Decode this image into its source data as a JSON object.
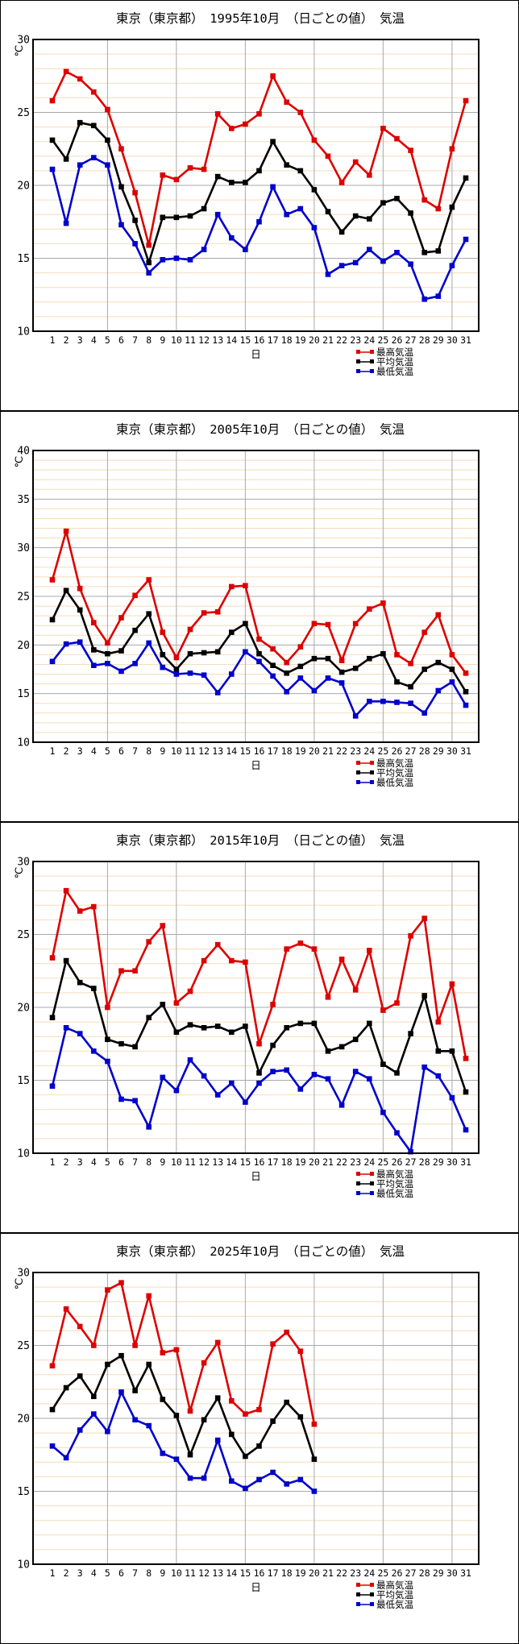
{
  "colors": {
    "max_line": "#dd0000",
    "avg_line": "#000000",
    "min_line": "#0000cc",
    "grid_minor": "#f2ddbb",
    "grid_major": "#a9a9a9",
    "plot_border": "#000000",
    "background": "#ffffff"
  },
  "legend": {
    "entries": [
      {
        "label": "最高気温",
        "color": "#dd0000"
      },
      {
        "label": "平均気温",
        "color": "#000000"
      },
      {
        "label": "最低気温",
        "color": "#0000cc"
      }
    ]
  },
  "axis": {
    "unit_label": "℃",
    "x_label": "日"
  },
  "chart_data": [
    {
      "type": "line",
      "title": "東京（東京都）　1995年10月　（日ごとの値）　気温",
      "station": "東京（東京都）",
      "period": "1995年10月",
      "subtitle": "（日ごとの値）",
      "quantity": "気温",
      "xlabel": "日",
      "ylabel": "℃",
      "ylim": [
        10,
        30
      ],
      "yticks": [
        10,
        15,
        20,
        25,
        30
      ],
      "xticks": [
        1,
        2,
        3,
        4,
        5,
        6,
        7,
        8,
        9,
        10,
        11,
        12,
        13,
        14,
        15,
        16,
        17,
        18,
        19,
        20,
        21,
        22,
        23,
        24,
        25,
        26,
        27,
        28,
        29,
        30,
        31
      ],
      "grid": "minor 1C horizontal, major 5C and every 5 days",
      "legend_position": "below-right",
      "series": [
        {
          "name": "最高気温",
          "color": "#dd0000",
          "values": [
            25.8,
            27.8,
            27.3,
            26.4,
            25.2,
            22.5,
            19.5,
            15.9,
            20.7,
            20.4,
            21.2,
            21.1,
            24.9,
            23.9,
            24.2,
            24.9,
            27.5,
            25.7,
            25.0,
            23.1,
            22.0,
            20.2,
            21.6,
            20.7,
            23.9,
            23.2,
            22.4,
            19.0,
            18.4,
            22.5,
            25.8
          ]
        },
        {
          "name": "平均気温",
          "color": "#000000",
          "values": [
            23.1,
            21.8,
            24.3,
            24.1,
            23.1,
            19.9,
            17.6,
            14.7,
            17.8,
            17.8,
            17.9,
            18.4,
            20.6,
            20.2,
            20.2,
            21.0,
            23.0,
            21.4,
            21.0,
            19.7,
            18.2,
            16.8,
            17.9,
            17.7,
            18.8,
            19.1,
            18.1,
            15.4,
            15.5,
            18.5,
            20.5
          ]
        },
        {
          "name": "最低気温",
          "color": "#0000cc",
          "values": [
            21.1,
            17.4,
            21.4,
            21.9,
            21.4,
            17.3,
            16.0,
            14.0,
            14.9,
            15.0,
            14.9,
            15.6,
            18.0,
            16.4,
            15.6,
            17.5,
            19.9,
            18.0,
            18.4,
            17.1,
            13.9,
            14.5,
            14.7,
            15.6,
            14.8,
            15.4,
            14.6,
            12.2,
            12.4,
            14.5,
            16.3
          ]
        }
      ]
    },
    {
      "type": "line",
      "title": "東京（東京都）　2005年10月　（日ごとの値）　気温",
      "station": "東京（東京都）",
      "period": "2005年10月",
      "subtitle": "（日ごとの値）",
      "quantity": "気温",
      "xlabel": "日",
      "ylabel": "℃",
      "ylim": [
        10,
        40
      ],
      "yticks": [
        10,
        15,
        20,
        25,
        30,
        35,
        40
      ],
      "xticks": [
        1,
        2,
        3,
        4,
        5,
        6,
        7,
        8,
        9,
        10,
        11,
        12,
        13,
        14,
        15,
        16,
        17,
        18,
        19,
        20,
        21,
        22,
        23,
        24,
        25,
        26,
        27,
        28,
        29,
        30,
        31
      ],
      "grid": "minor 1C horizontal, major 5C and every 5 days",
      "legend_position": "below-right",
      "series": [
        {
          "name": "最高気温",
          "color": "#dd0000",
          "values": [
            26.7,
            31.7,
            25.8,
            22.3,
            20.2,
            22.8,
            25.1,
            26.7,
            21.3,
            18.7,
            21.6,
            23.3,
            23.4,
            26.0,
            26.1,
            20.6,
            19.6,
            18.2,
            19.8,
            22.2,
            22.1,
            18.4,
            22.2,
            23.7,
            24.3,
            19.0,
            18.1,
            21.3,
            23.1,
            19.0,
            17.1
          ]
        },
        {
          "name": "平均気温",
          "color": "#000000",
          "values": [
            22.6,
            25.6,
            23.6,
            19.5,
            19.1,
            19.4,
            21.5,
            23.2,
            19.0,
            17.5,
            19.1,
            19.2,
            19.3,
            21.3,
            22.2,
            19.1,
            17.9,
            17.1,
            17.8,
            18.6,
            18.6,
            17.2,
            17.6,
            18.6,
            19.1,
            16.2,
            15.7,
            17.5,
            18.2,
            17.5,
            15.2
          ]
        },
        {
          "name": "最低気温",
          "color": "#0000cc",
          "values": [
            18.3,
            20.1,
            20.3,
            17.9,
            18.1,
            17.3,
            18.1,
            20.2,
            17.7,
            17.0,
            17.1,
            16.9,
            15.1,
            17.0,
            19.3,
            18.3,
            16.8,
            15.2,
            16.6,
            15.3,
            16.6,
            16.1,
            12.7,
            14.2,
            14.2,
            14.1,
            14.0,
            13.0,
            15.3,
            16.2,
            13.8
          ]
        }
      ]
    },
    {
      "type": "line",
      "title": "東京（東京都）　2015年10月　（日ごとの値）　気温",
      "station": "東京（東京都）",
      "period": "2015年10月",
      "subtitle": "（日ごとの値）",
      "quantity": "気温",
      "xlabel": "日",
      "ylabel": "℃",
      "ylim": [
        10,
        30
      ],
      "yticks": [
        10,
        15,
        20,
        25,
        30
      ],
      "xticks": [
        1,
        2,
        3,
        4,
        5,
        6,
        7,
        8,
        9,
        10,
        11,
        12,
        13,
        14,
        15,
        16,
        17,
        18,
        19,
        20,
        21,
        22,
        23,
        24,
        25,
        26,
        27,
        28,
        29,
        30,
        31
      ],
      "grid": "minor 1C horizontal, major 5C and every 5 days",
      "legend_position": "below-right",
      "series": [
        {
          "name": "最高気温",
          "color": "#dd0000",
          "values": [
            23.4,
            28.0,
            26.6,
            26.9,
            20.0,
            22.5,
            22.5,
            24.5,
            25.6,
            20.3,
            21.1,
            23.2,
            24.3,
            23.2,
            23.1,
            17.5,
            20.2,
            24.0,
            24.4,
            24.0,
            20.7,
            23.3,
            21.2,
            23.9,
            19.8,
            20.3,
            24.9,
            26.1,
            19.0,
            21.6,
            16.5
          ]
        },
        {
          "name": "平均気温",
          "color": "#000000",
          "values": [
            19.3,
            23.2,
            21.7,
            21.3,
            17.8,
            17.5,
            17.3,
            19.3,
            20.2,
            18.3,
            18.8,
            18.6,
            18.7,
            18.3,
            18.7,
            15.5,
            17.4,
            18.6,
            18.9,
            18.9,
            17.0,
            17.3,
            17.8,
            18.9,
            16.1,
            15.5,
            18.2,
            20.8,
            17.0,
            17.0,
            14.2
          ]
        },
        {
          "name": "最低気温",
          "color": "#0000cc",
          "values": [
            14.6,
            18.6,
            18.2,
            17.0,
            16.3,
            13.7,
            13.6,
            11.8,
            15.2,
            14.3,
            16.4,
            15.3,
            14.0,
            14.8,
            13.5,
            14.8,
            15.6,
            15.7,
            14.4,
            15.4,
            15.1,
            13.3,
            15.6,
            15.1,
            12.8,
            11.4,
            10.1,
            15.9,
            15.3,
            13.8,
            11.6
          ]
        }
      ]
    },
    {
      "type": "line",
      "title": "東京（東京都）　2025年10月　（日ごとの値）　気温",
      "station": "東京（東京都）",
      "period": "2025年10月",
      "subtitle": "（日ごとの値）",
      "quantity": "気温",
      "xlabel": "日",
      "ylabel": "℃",
      "ylim": [
        10,
        30
      ],
      "yticks": [
        10,
        15,
        20,
        25,
        30
      ],
      "xticks": [
        1,
        2,
        3,
        4,
        5,
        6,
        7,
        8,
        9,
        10,
        11,
        12,
        13,
        14,
        15,
        16,
        17,
        18,
        19,
        20,
        21,
        22,
        23,
        24,
        25,
        26,
        27,
        28,
        29,
        30,
        31
      ],
      "grid": "minor 1C horizontal, major 5C and every 5 days",
      "legend_position": "below-right",
      "note": "data plotted only through day 20",
      "series": [
        {
          "name": "最高気温",
          "color": "#dd0000",
          "values": [
            23.6,
            27.5,
            26.3,
            25.0,
            28.8,
            29.3,
            25.0,
            28.4,
            24.5,
            24.7,
            20.5,
            23.8,
            25.2,
            21.2,
            20.3,
            20.6,
            25.1,
            25.9,
            24.6,
            19.6
          ]
        },
        {
          "name": "平均気温",
          "color": "#000000",
          "values": [
            20.6,
            22.1,
            22.9,
            21.5,
            23.7,
            24.3,
            21.9,
            23.7,
            21.3,
            20.2,
            17.5,
            19.9,
            21.4,
            18.9,
            17.4,
            18.1,
            19.8,
            21.1,
            20.1,
            17.2
          ]
        },
        {
          "name": "最低気温",
          "color": "#0000cc",
          "values": [
            18.1,
            17.3,
            19.2,
            20.3,
            19.1,
            21.8,
            19.9,
            19.5,
            17.6,
            17.2,
            15.9,
            15.9,
            18.5,
            15.7,
            15.2,
            15.8,
            16.3,
            15.5,
            15.8,
            15.0
          ]
        }
      ]
    }
  ]
}
